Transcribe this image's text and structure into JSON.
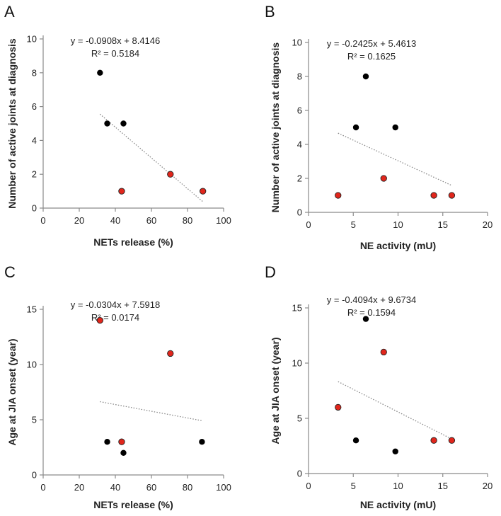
{
  "chart_data": [
    {
      "panel": "A",
      "type": "scatter",
      "xlabel": "NETs release (%)",
      "ylabel": "Number of active joints at diagnosis",
      "xlim": [
        0,
        100
      ],
      "ylim": [
        0,
        10
      ],
      "xticks": [
        0,
        20,
        40,
        60,
        80,
        100
      ],
      "yticks": [
        0,
        2,
        4,
        6,
        8,
        10
      ],
      "equation": "y = -0.0908x + 8.4146",
      "r2": "R² = 0.5184",
      "trend": {
        "x": [
          31.5,
          88.5
        ]
      },
      "series": [
        {
          "name": "black",
          "color": "#000000",
          "points": [
            [
              31.5,
              8
            ],
            [
              35.5,
              5
            ],
            [
              44.5,
              5
            ]
          ]
        },
        {
          "name": "red",
          "color": "#e1261c",
          "points": [
            [
              43.5,
              1
            ],
            [
              70.5,
              2
            ],
            [
              88.5,
              1
            ]
          ]
        }
      ]
    },
    {
      "panel": "B",
      "type": "scatter",
      "xlabel": "NE activity  (mU)",
      "ylabel": "Number of  active  joints at diagnosis",
      "xlim": [
        0,
        20
      ],
      "ylim": [
        0,
        10
      ],
      "xticks": [
        0,
        5,
        10,
        15,
        20
      ],
      "yticks": [
        0,
        2,
        4,
        6,
        8,
        10
      ],
      "equation": "y = -0.2425x + 5.4613",
      "r2": "R² = 0.1625",
      "trend": {
        "x": [
          3.3,
          16
        ]
      },
      "series": [
        {
          "name": "black",
          "color": "#000000",
          "points": [
            [
              6.4,
              8
            ],
            [
              5.3,
              5
            ],
            [
              9.7,
              5
            ]
          ]
        },
        {
          "name": "red",
          "color": "#e1261c",
          "points": [
            [
              3.3,
              1
            ],
            [
              8.4,
              2
            ],
            [
              14,
              1
            ],
            [
              16,
              1
            ]
          ]
        }
      ]
    },
    {
      "panel": "C",
      "type": "scatter",
      "xlabel": "NETs release (%)",
      "ylabel": "Age at JIA onset (year)",
      "xlim": [
        0,
        100
      ],
      "ylim": [
        0,
        15
      ],
      "xticks": [
        0,
        20,
        40,
        60,
        80,
        100
      ],
      "yticks": [
        0,
        5,
        10,
        15
      ],
      "equation": "y = -0.0304x + 7.5918",
      "r2": "R² = 0.0174",
      "trend": {
        "x": [
          31.5,
          88
        ]
      },
      "series": [
        {
          "name": "black",
          "color": "#000000",
          "points": [
            [
              35.5,
              3
            ],
            [
              44.5,
              2
            ],
            [
              88,
              3
            ]
          ]
        },
        {
          "name": "red",
          "color": "#e1261c",
          "points": [
            [
              31.5,
              14
            ],
            [
              70.5,
              11
            ],
            [
              43.5,
              3
            ]
          ]
        }
      ]
    },
    {
      "panel": "D",
      "type": "scatter",
      "xlabel": "NE activity (mU)",
      "ylabel": "Age at JIA onset (year)",
      "xlim": [
        0,
        20
      ],
      "ylim": [
        0,
        15
      ],
      "xticks": [
        0,
        5,
        10,
        15,
        20
      ],
      "yticks": [
        0,
        5,
        10,
        15
      ],
      "equation": "y = -0.4094x + 9.6734",
      "r2": "R² = 0.1594",
      "trend": {
        "x": [
          3.3,
          16
        ]
      },
      "series": [
        {
          "name": "black",
          "color": "#000000",
          "points": [
            [
              6.4,
              14
            ],
            [
              5.3,
              3
            ],
            [
              9.7,
              2
            ]
          ]
        },
        {
          "name": "red",
          "color": "#e1261c",
          "points": [
            [
              8.4,
              11
            ],
            [
              3.3,
              6
            ],
            [
              14,
              3
            ],
            [
              16,
              3
            ]
          ]
        }
      ]
    }
  ]
}
